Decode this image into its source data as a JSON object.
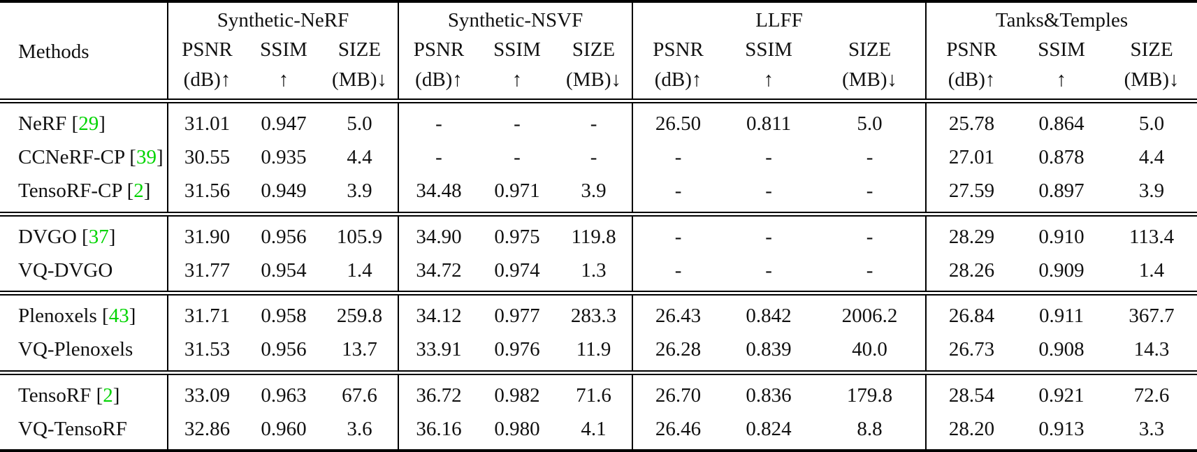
{
  "table": {
    "methods_header": "Methods",
    "citation_color": "#00d400",
    "groups": [
      {
        "name": "Synthetic-NeRF"
      },
      {
        "name": "Synthetic-NSVF"
      },
      {
        "name": "LLFF"
      },
      {
        "name": "Tanks&Temples"
      }
    ],
    "metric_labels": [
      "PSNR",
      "SSIM",
      "SIZE"
    ],
    "metric_sub_labels": [
      "(dB)↑",
      "↑",
      "(MB)↓"
    ],
    "row_groups": [
      {
        "rows": [
          {
            "method": "NeRF",
            "citation": "29",
            "values": [
              "31.01",
              "0.947",
              "5.0",
              "-",
              "-",
              "-",
              "26.50",
              "0.811",
              "5.0",
              "25.78",
              "0.864",
              "5.0"
            ]
          },
          {
            "method": "CCNeRF-CP",
            "citation": "39",
            "values": [
              "30.55",
              "0.935",
              "4.4",
              "-",
              "-",
              "-",
              "-",
              "-",
              "-",
              "27.01",
              "0.878",
              "4.4"
            ]
          },
          {
            "method": "TensoRF-CP",
            "citation": "2",
            "values": [
              "31.56",
              "0.949",
              "3.9",
              "34.48",
              "0.971",
              "3.9",
              "-",
              "-",
              "-",
              "27.59",
              "0.897",
              "3.9"
            ]
          }
        ]
      },
      {
        "rows": [
          {
            "method": "DVGO",
            "citation": "37",
            "values": [
              "31.90",
              "0.956",
              "105.9",
              "34.90",
              "0.975",
              "119.8",
              "-",
              "-",
              "-",
              "28.29",
              "0.910",
              "113.4"
            ]
          },
          {
            "method": "VQ-DVGO",
            "citation": null,
            "values": [
              "31.77",
              "0.954",
              "1.4",
              "34.72",
              "0.974",
              "1.3",
              "-",
              "-",
              "-",
              "28.26",
              "0.909",
              "1.4"
            ]
          }
        ]
      },
      {
        "rows": [
          {
            "method": "Plenoxels",
            "citation": "43",
            "values": [
              "31.71",
              "0.958",
              "259.8",
              "34.12",
              "0.977",
              "283.3",
              "26.43",
              "0.842",
              "2006.2",
              "26.84",
              "0.911",
              "367.7"
            ]
          },
          {
            "method": "VQ-Plenoxels",
            "citation": null,
            "values": [
              "31.53",
              "0.956",
              "13.7",
              "33.91",
              "0.976",
              "11.9",
              "26.28",
              "0.839",
              "40.0",
              "26.73",
              "0.908",
              "14.3"
            ]
          }
        ]
      },
      {
        "rows": [
          {
            "method": "TensoRF",
            "citation": "2",
            "values": [
              "33.09",
              "0.963",
              "67.6",
              "36.72",
              "0.982",
              "71.6",
              "26.70",
              "0.836",
              "179.8",
              "28.54",
              "0.921",
              "72.6"
            ]
          },
          {
            "method": "VQ-TensoRF",
            "citation": null,
            "values": [
              "32.86",
              "0.960",
              "3.6",
              "36.16",
              "0.980",
              "4.1",
              "26.46",
              "0.824",
              "8.8",
              "28.20",
              "0.913",
              "3.3"
            ]
          }
        ]
      }
    ]
  }
}
